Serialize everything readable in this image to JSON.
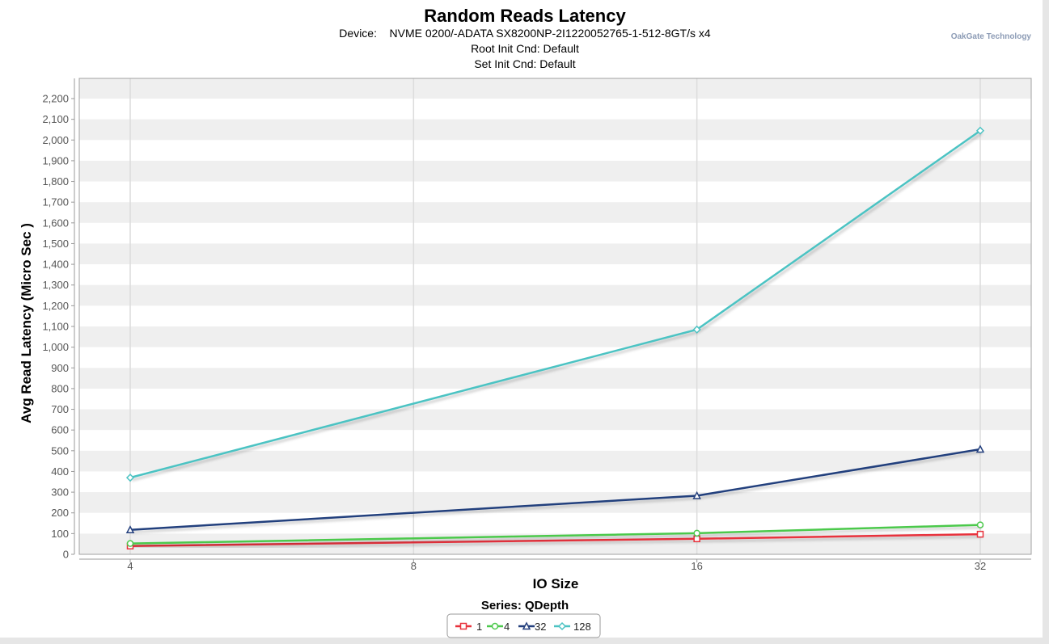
{
  "brand": "OakGate Technology",
  "chart_data": {
    "type": "line",
    "title": "Random Reads Latency",
    "subtitle_lines": [
      "Device:    NVME 0200/-ADATA SX8200NP-2I1220052765-1-512-8GT/s x4",
      "Root Init Cnd: Default",
      "Set Init Cnd: Default"
    ],
    "xlabel": "IO Size",
    "ylabel": "Avg Read Latency (Micro Sec )",
    "x_ticks": [
      4,
      8,
      16,
      32
    ],
    "x_scale": "log2",
    "ylim": [
      0,
      2200
    ],
    "y_ticks": [
      0,
      100,
      200,
      300,
      400,
      500,
      600,
      700,
      800,
      900,
      1000,
      1100,
      1200,
      1300,
      1400,
      1500,
      1600,
      1700,
      1800,
      1900,
      2000,
      2100,
      2200
    ],
    "y_tick_labels": [
      "0",
      "100",
      "200",
      "300",
      "400",
      "500",
      "600",
      "700",
      "800",
      "900",
      "1,000",
      "1,100",
      "1,200",
      "1,300",
      "1,400",
      "1,500",
      "1,600",
      "1,700",
      "1,800",
      "1,900",
      "2,000",
      "2,100",
      "2,200"
    ],
    "grid": true,
    "legend_title": "Series: QDepth",
    "legend_position": "bottom-center",
    "series": [
      {
        "name": "1",
        "color": "#e8323c",
        "marker": "square",
        "x": [
          4,
          16,
          32
        ],
        "values": [
          40,
          75,
          97
        ]
      },
      {
        "name": "4",
        "color": "#4cc94c",
        "marker": "circle",
        "x": [
          4,
          16,
          32
        ],
        "values": [
          52,
          102,
          142
        ]
      },
      {
        "name": "32",
        "color": "#233f7d",
        "marker": "triangle",
        "x": [
          4,
          16,
          32
        ],
        "values": [
          118,
          283,
          507
        ]
      },
      {
        "name": "128",
        "color": "#4cc3c3",
        "marker": "diamond",
        "x": [
          4,
          16,
          32
        ],
        "values": [
          370,
          1085,
          2045
        ]
      }
    ]
  }
}
